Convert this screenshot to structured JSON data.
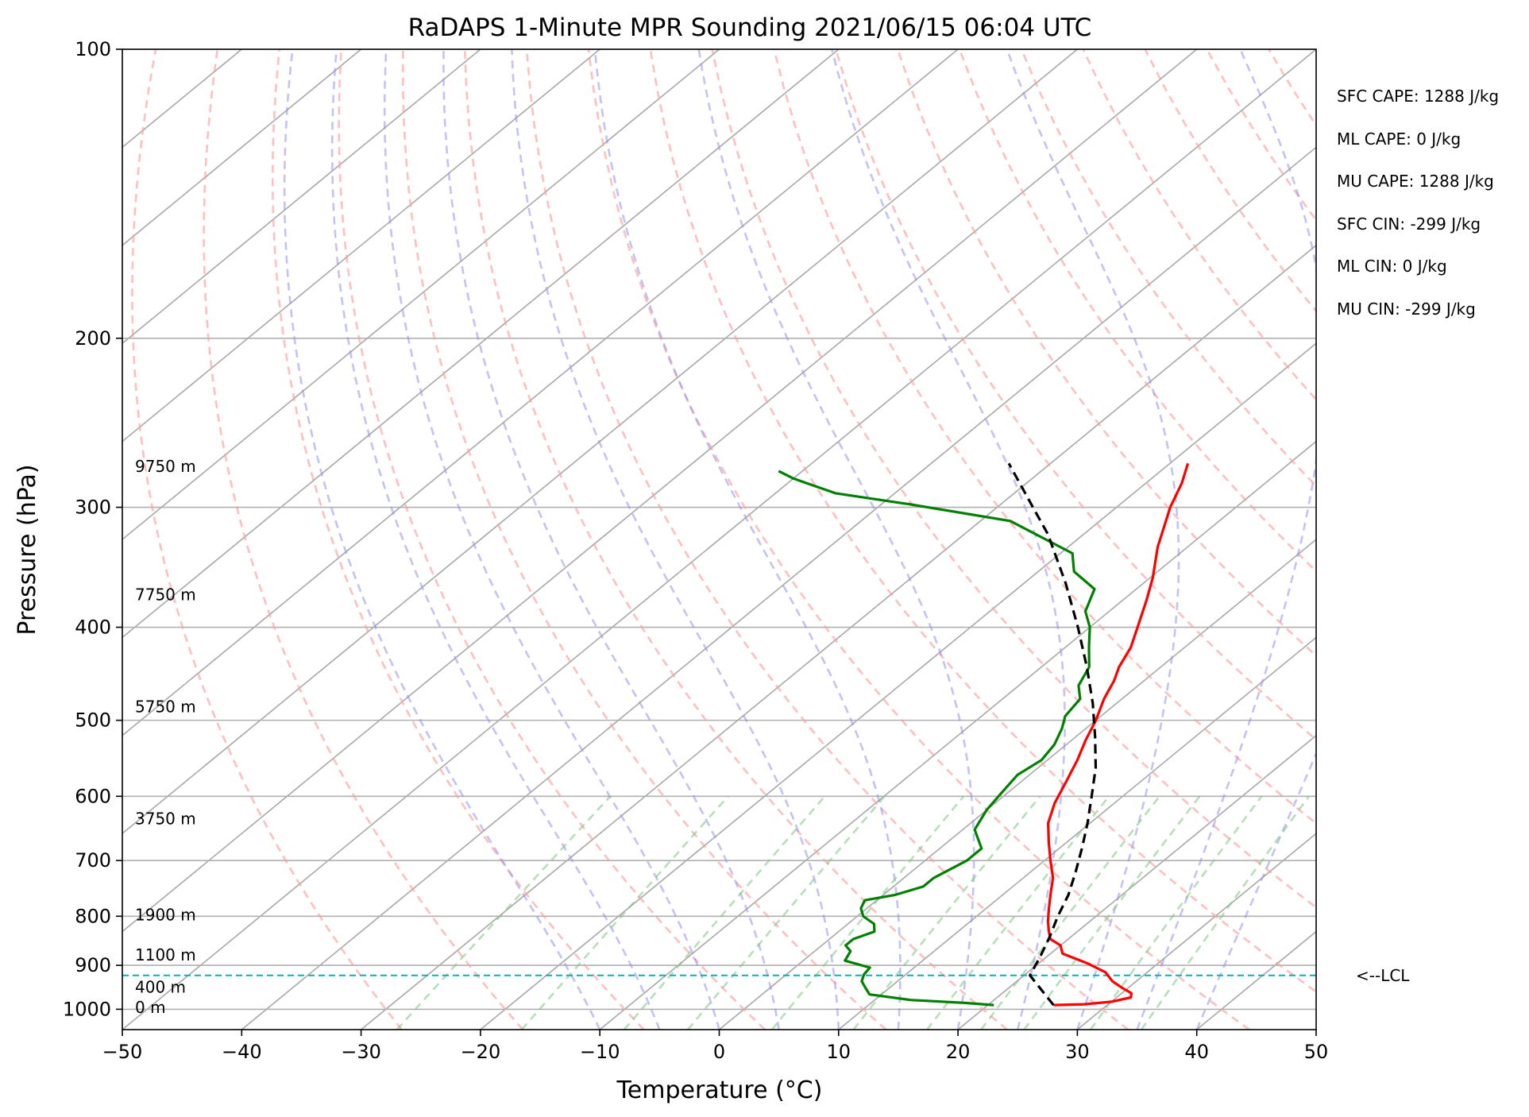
{
  "chart_data": {
    "type": "line",
    "title": "RaDAPS 1-Minute MPR Sounding 2021/06/15 06:04 UTC",
    "xlabel": "Temperature (°C)",
    "ylabel": "Pressure (hPa)",
    "xlim": [
      -50,
      50
    ],
    "ylim": [
      1050,
      100
    ],
    "y_scale": "log",
    "x_ticks": [
      -50,
      -40,
      -30,
      -20,
      -10,
      0,
      10,
      20,
      30,
      40,
      50
    ],
    "x_tick_labels": [
      "−50",
      "−40",
      "−30",
      "−20",
      "−10",
      "0",
      "10",
      "20",
      "30",
      "40",
      "50"
    ],
    "y_ticks": [
      100,
      200,
      300,
      400,
      500,
      600,
      700,
      800,
      900,
      1000
    ],
    "y_tick_labels": [
      "100",
      "200",
      "300",
      "400",
      "500",
      "600",
      "700",
      "800",
      "900",
      "1000"
    ],
    "skew_reference_temps": [
      -150,
      -140,
      -130,
      -120,
      -110,
      -100,
      -90,
      -80,
      -70,
      -60,
      -50,
      -40,
      -30,
      -20,
      -10,
      0,
      10,
      20,
      30,
      40,
      50
    ],
    "dry_adiabats_theta_c": [
      -30,
      -20,
      -10,
      0,
      10,
      20,
      30,
      40,
      50,
      60,
      70,
      80,
      90,
      100,
      110,
      120,
      130,
      140,
      150,
      160,
      170,
      180
    ],
    "moist_adiabats_start_c": [
      -10,
      -5,
      0,
      5,
      10,
      15,
      20,
      25,
      30,
      35,
      40
    ],
    "mixing_ratio_lines_gkg": [
      0.4,
      1,
      2,
      3,
      5,
      8,
      12,
      16,
      20,
      28,
      36
    ],
    "grid": true,
    "series": [
      {
        "key": "temperature",
        "color": "#ff0000",
        "points": [
          [
            990,
            25.5
          ],
          [
            988,
            28
          ],
          [
            982,
            30
          ],
          [
            972,
            31.2
          ],
          [
            962,
            30.8
          ],
          [
            950,
            29.5
          ],
          [
            935,
            28
          ],
          [
            915,
            26.5
          ],
          [
            895,
            24
          ],
          [
            875,
            21
          ],
          [
            858,
            20
          ],
          [
            845,
            18.5
          ],
          [
            828,
            17.5
          ],
          [
            810,
            16.5
          ],
          [
            790,
            15.5
          ],
          [
            770,
            14.5
          ],
          [
            750,
            13.5
          ],
          [
            730,
            12.5
          ],
          [
            700,
            10.5
          ],
          [
            670,
            8.5
          ],
          [
            640,
            6.5
          ],
          [
            610,
            5
          ],
          [
            580,
            3.8
          ],
          [
            550,
            2.5
          ],
          [
            525,
            1.2
          ],
          [
            500,
            0
          ],
          [
            475,
            -1.5
          ],
          [
            455,
            -2.5
          ],
          [
            440,
            -3.5
          ],
          [
            420,
            -4.5
          ],
          [
            400,
            -6
          ],
          [
            375,
            -8
          ],
          [
            355,
            -9.8
          ],
          [
            330,
            -12.5
          ],
          [
            300,
            -15.5
          ],
          [
            283,
            -17
          ],
          [
            270,
            -18.5
          ]
        ]
      },
      {
        "key": "dewpoint",
        "color": "#008000",
        "points": [
          [
            990,
            20.5
          ],
          [
            985,
            18
          ],
          [
            978,
            13
          ],
          [
            965,
            9
          ],
          [
            950,
            8
          ],
          [
            935,
            7
          ],
          [
            920,
            6.5
          ],
          [
            905,
            6.3
          ],
          [
            890,
            3.5
          ],
          [
            870,
            3
          ],
          [
            858,
            2
          ],
          [
            845,
            2
          ],
          [
            830,
            3
          ],
          [
            815,
            2.2
          ],
          [
            800,
            0.5
          ],
          [
            785,
            -0.5
          ],
          [
            770,
            -1
          ],
          [
            760,
            1
          ],
          [
            745,
            2.5
          ],
          [
            730,
            2.5
          ],
          [
            700,
            3.5
          ],
          [
            680,
            3.5
          ],
          [
            650,
            1
          ],
          [
            620,
            0
          ],
          [
            595,
            -0.5
          ],
          [
            570,
            -1
          ],
          [
            550,
            -0.5
          ],
          [
            530,
            -1
          ],
          [
            510,
            -2
          ],
          [
            495,
            -3
          ],
          [
            475,
            -3.5
          ],
          [
            460,
            -5
          ],
          [
            440,
            -6
          ],
          [
            420,
            -8
          ],
          [
            400,
            -10
          ],
          [
            385,
            -12
          ],
          [
            365,
            -13.5
          ],
          [
            350,
            -17
          ],
          [
            335,
            -19
          ],
          [
            310,
            -27.5
          ],
          [
            298,
            -37.5
          ],
          [
            290,
            -45
          ],
          [
            280,
            -50
          ],
          [
            275,
            -52
          ]
        ]
      },
      {
        "key": "parcel",
        "color": "#000000",
        "dashed": true,
        "points": [
          [
            990,
            25.5
          ],
          [
            922,
            20.5
          ],
          [
            880,
            19.4
          ],
          [
            840,
            18.2
          ],
          [
            800,
            16.8
          ],
          [
            760,
            15.5
          ],
          [
            720,
            13.8
          ],
          [
            680,
            11.9
          ],
          [
            640,
            9.8
          ],
          [
            600,
            7.4
          ],
          [
            560,
            4.8
          ],
          [
            520,
            1.6
          ],
          [
            480,
            -2
          ],
          [
            440,
            -6.2
          ],
          [
            400,
            -11
          ],
          [
            360,
            -16.5
          ],
          [
            320,
            -23
          ],
          [
            300,
            -27
          ],
          [
            270,
            -33.5
          ]
        ]
      }
    ],
    "lcl": {
      "pressure_hpa": 922,
      "label": "<--LCL",
      "color": "#00b5b5"
    },
    "height_labels": [
      {
        "text": "0 m",
        "pressure_hpa": 995
      },
      {
        "text": "400 m",
        "pressure_hpa": 948
      },
      {
        "text": "1100 m",
        "pressure_hpa": 878
      },
      {
        "text": "1900 m",
        "pressure_hpa": 797
      },
      {
        "text": "3750 m",
        "pressure_hpa": 633
      },
      {
        "text": "5750 m",
        "pressure_hpa": 484
      },
      {
        "text": "7750 m",
        "pressure_hpa": 370
      },
      {
        "text": "9750 m",
        "pressure_hpa": 272
      }
    ],
    "annotations": [
      "SFC CAPE: 1288 J/kg",
      "ML CAPE: 0 J/kg",
      "MU CAPE: 1288 J/kg",
      "SFC CIN: -299 J/kg",
      "ML CIN: 0 J/kg",
      "MU CIN: -299 J/kg"
    ]
  }
}
